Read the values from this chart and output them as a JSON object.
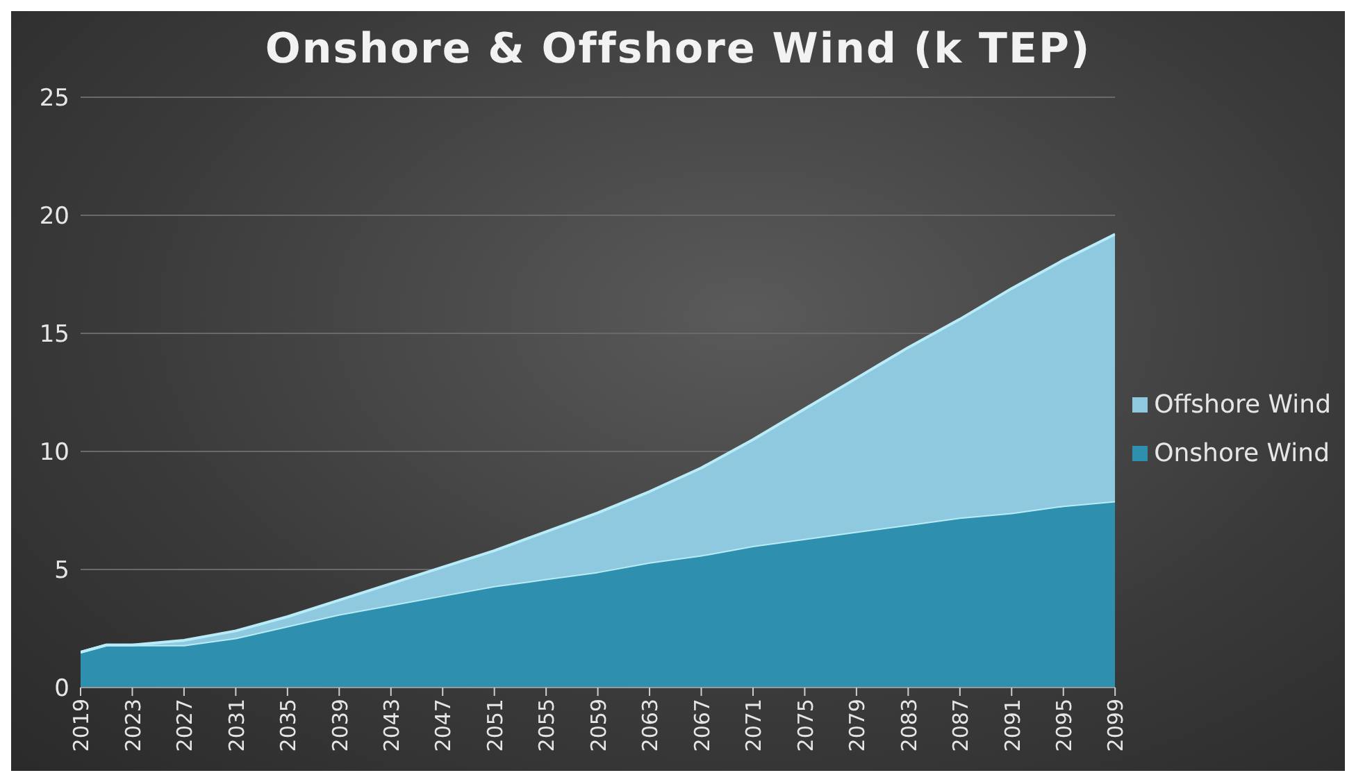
{
  "chart_data": {
    "type": "area",
    "title": "Onshore & Offshore Wind (k TEP)",
    "stacked": true,
    "x": [
      2019,
      2021,
      2023,
      2027,
      2031,
      2035,
      2039,
      2043,
      2047,
      2051,
      2055,
      2059,
      2063,
      2067,
      2071,
      2075,
      2079,
      2083,
      2087,
      2091,
      2095,
      2099
    ],
    "series": [
      {
        "name": "Onshore Wind",
        "color": "#2e8fae",
        "values": [
          1.5,
          1.8,
          1.8,
          1.8,
          2.1,
          2.6,
          3.1,
          3.5,
          3.9,
          4.3,
          4.6,
          4.9,
          5.3,
          5.6,
          6.0,
          6.3,
          6.6,
          6.9,
          7.2,
          7.4,
          7.7,
          7.9
        ]
      },
      {
        "name": "Offshore Wind",
        "color": "#8ec9df",
        "values": [
          0,
          0,
          0,
          0.2,
          0.3,
          0.4,
          0.6,
          0.9,
          1.2,
          1.5,
          2.0,
          2.5,
          3.0,
          3.7,
          4.5,
          5.5,
          6.5,
          7.5,
          8.4,
          9.5,
          10.4,
          11.3
        ]
      }
    ],
    "xlim": [
      2019,
      2099
    ],
    "xticks": [
      2019,
      2023,
      2027,
      2031,
      2035,
      2039,
      2043,
      2047,
      2051,
      2055,
      2059,
      2063,
      2067,
      2071,
      2075,
      2079,
      2083,
      2087,
      2091,
      2095,
      2099
    ],
    "ylim": [
      0,
      25
    ],
    "yticks": [
      0,
      5,
      10,
      15,
      20,
      25
    ],
    "grid": "y",
    "legend": "right"
  }
}
